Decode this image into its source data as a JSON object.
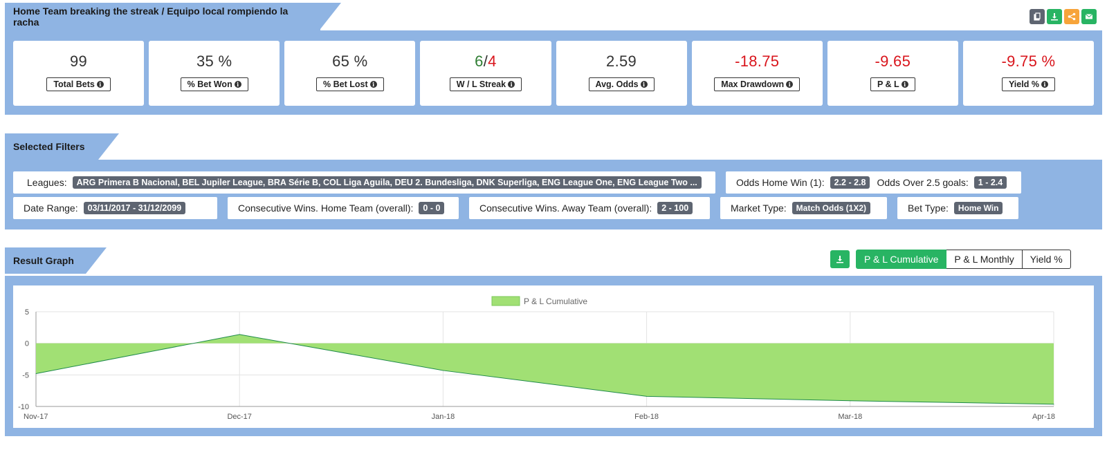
{
  "header": {
    "title": "Home Team breaking the streak / Equipo local rompiendo la racha",
    "tools": [
      {
        "icon": "copy-icon",
        "color": "#5e6571"
      },
      {
        "icon": "download-icon",
        "color": "#28b463"
      },
      {
        "icon": "share-icon",
        "color": "#f7a43a"
      },
      {
        "icon": "email-icon",
        "color": "#28b463"
      }
    ]
  },
  "stats": {
    "total_bets": {
      "value": "99",
      "label": "Total Bets"
    },
    "bet_won": {
      "value": "35 %",
      "label": "% Bet Won"
    },
    "bet_lost": {
      "value": "65 %",
      "label": "% Bet Lost"
    },
    "wl_streak": {
      "win": "6",
      "sep": "/",
      "loss": "4",
      "label": "W / L Streak"
    },
    "avg_odds": {
      "value": "2.59",
      "label": "Avg. Odds"
    },
    "max_drawdown": {
      "value": "-18.75",
      "label": "Max Drawdown"
    },
    "pl": {
      "value": "-9.65",
      "label": "P & L"
    },
    "yield": {
      "value": "-9.75 %",
      "label": "Yield %"
    }
  },
  "filters": {
    "title": "Selected Filters",
    "leagues": {
      "label": "Leagues:",
      "value": "ARG Primera B Nacional, BEL Jupiler League, BRA Série B, COL Liga Aguila, DEU 2. Bundesliga, DNK Superliga, ENG League One, ENG League Two ..."
    },
    "odds_home": {
      "label": "Odds Home Win (1):",
      "value": "2.2 - 2.8"
    },
    "odds_over": {
      "label": "Odds Over 2.5 goals:",
      "value": "1 - 2.4"
    },
    "date_range": {
      "label": "Date Range:",
      "value": "03/11/2017 - 31/12/2099"
    },
    "cons_home": {
      "label": "Consecutive Wins. Home Team (overall):",
      "value": "0 - 0"
    },
    "cons_away": {
      "label": "Consecutive Wins. Away Team (overall):",
      "value": "2 - 100"
    },
    "market": {
      "label": "Market Type:",
      "value": "Match Odds (1X2)"
    },
    "bet_type": {
      "label": "Bet Type:",
      "value": "Home Win"
    }
  },
  "graph": {
    "title": "Result Graph",
    "buttons": {
      "cumulative": "P & L Cumulative",
      "monthly": "P & L Monthly",
      "yield": "Yield %"
    }
  },
  "chart_data": {
    "type": "area",
    "legend": "P & L Cumulative",
    "legend_position": "top-center",
    "categories": [
      "Nov-17",
      "Dec-17",
      "Jan-18",
      "Feb-18",
      "Mar-18",
      "Apr-18"
    ],
    "values": [
      -4.8,
      1.4,
      -4.3,
      -8.4,
      -9.1,
      -9.65
    ],
    "yticks": [
      5,
      0,
      -5,
      -10
    ],
    "ylim": [
      -10,
      5
    ],
    "grid": true,
    "fill_color": "#a1e074",
    "line_color": "#1e8a4a"
  }
}
